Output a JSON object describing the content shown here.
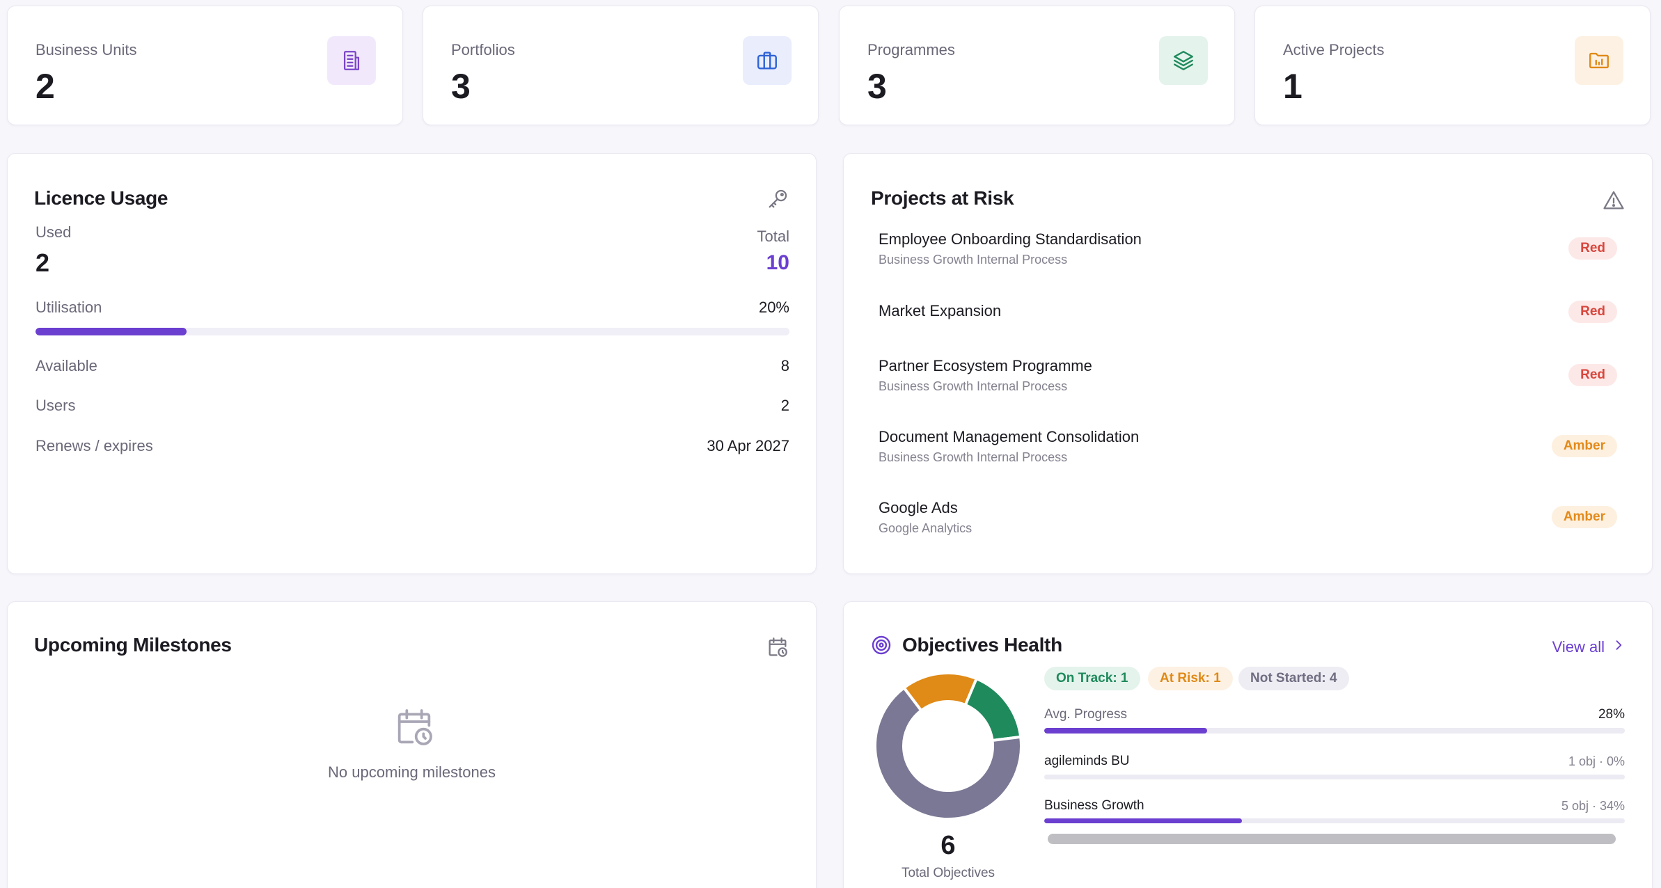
{
  "stats": [
    {
      "label": "Business Units",
      "value": "2",
      "icon": "building-icon"
    },
    {
      "label": "Portfolios",
      "value": "3",
      "icon": "briefcase-icon"
    },
    {
      "label": "Programmes",
      "value": "3",
      "icon": "layers-icon"
    },
    {
      "label": "Active Projects",
      "value": "1",
      "icon": "folder-chart-icon"
    }
  ],
  "colors": {
    "accent": "#6b3fd0",
    "business_units_icon_bg": "#f1e9fb",
    "portfolios_icon_bg": "#e9edfc",
    "programmes_icon_bg": "#e4f3ec",
    "projects_icon_bg": "#fdf1e3",
    "on_track": "#1f8a5c",
    "at_risk": "#e08a17",
    "not_started": "#7a7894",
    "red": "#d8463c"
  },
  "licence": {
    "title": "Licence Usage",
    "icon": "key-icon",
    "used_label": "Used",
    "used_value": "2",
    "total_label": "Total",
    "total_value": "10",
    "utilisation_label": "Utilisation",
    "utilisation_value": "20%",
    "utilisation_fraction": 0.2,
    "available_label": "Available",
    "available_value": "8",
    "users_label": "Users",
    "users_value": "2",
    "renews_label": "Renews / expires",
    "renews_value": "30 Apr 2027"
  },
  "risk": {
    "title": "Projects at Risk",
    "icon": "warning-triangle-icon",
    "items": [
      {
        "title": "Employee Onboarding Standardisation",
        "sub": "Business Growth Internal Process",
        "status": "Red"
      },
      {
        "title": "Market Expansion",
        "sub": "",
        "status": "Red"
      },
      {
        "title": "Partner Ecosystem Programme",
        "sub": "Business Growth Internal Process",
        "status": "Red"
      },
      {
        "title": "Document Management Consolidation",
        "sub": "Business Growth Internal Process",
        "status": "Amber"
      },
      {
        "title": "Google Ads",
        "sub": "Google Analytics",
        "status": "Amber"
      }
    ]
  },
  "milestones": {
    "title": "Upcoming Milestones",
    "icon": "calendar-clock-icon",
    "empty_text": "No upcoming milestones"
  },
  "objectives": {
    "title": "Objectives Health",
    "icon": "target-icon",
    "view_all": "View all",
    "total": "6",
    "total_label": "Total Objectives",
    "pills": {
      "on_track": "On Track: 1",
      "at_risk": "At Risk: 1",
      "not_started": "Not Started: 4"
    },
    "avg_label": "Avg. Progress",
    "avg_value": "28%",
    "avg_fraction": 0.28,
    "units": [
      {
        "name": "agileminds BU",
        "meta": "1 obj · 0%",
        "fraction": 0
      },
      {
        "name": "Business Growth",
        "meta": "5 obj · 34%",
        "fraction": 0.34
      }
    ],
    "chart_data": {
      "type": "pie",
      "categories": [
        "On Track",
        "At Risk",
        "Not Started"
      ],
      "values": [
        1,
        1,
        4
      ]
    }
  }
}
